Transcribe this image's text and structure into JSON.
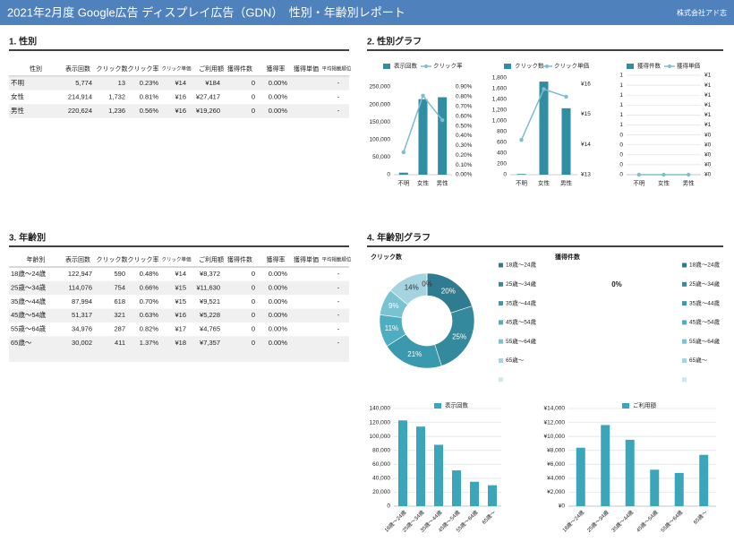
{
  "header": {
    "title": "2021年2月度 Google広告 ディスプレイ広告（GDN）　性別・年齢別レポート",
    "company": "株式会社アド志"
  },
  "gender_table": {
    "title": "1. 性別",
    "columns": [
      "性別",
      "表示回数",
      "クリック数",
      "クリック率",
      "クリック単価",
      "ご利用額",
      "獲得件数",
      "獲得率",
      "獲得単価",
      "平均掲載順位"
    ],
    "rows": [
      [
        "不明",
        "5,774",
        "13",
        "0.23%",
        "¥14",
        "¥184",
        "0",
        "0.00%",
        null,
        "-"
      ],
      [
        "女性",
        "214,914",
        "1,732",
        "0.81%",
        "¥16",
        "¥27,417",
        "0",
        "0.00%",
        null,
        "-"
      ],
      [
        "男性",
        "220,624",
        "1,236",
        "0.56%",
        "¥16",
        "¥19,260",
        "0",
        "0.00%",
        null,
        "-"
      ]
    ]
  },
  "gender_charts": {
    "title": "2. 性別グラフ"
  },
  "age_table": {
    "title": "3. 年齢別",
    "columns": [
      "年齢別",
      "表示回数",
      "クリック数",
      "クリック率",
      "クリック単価",
      "ご利用額",
      "獲得件数",
      "獲得率",
      "獲得単価",
      "平均掲載順位"
    ],
    "rows": [
      [
        "18歳〜24歳",
        "122,947",
        "590",
        "0.48%",
        "¥14",
        "¥8,372",
        "0",
        "0.00%",
        null,
        "-"
      ],
      [
        "25歳〜34歳",
        "114,076",
        "754",
        "0.66%",
        "¥15",
        "¥11,630",
        "0",
        "0.00%",
        null,
        "-"
      ],
      [
        "35歳〜44歳",
        "87,994",
        "618",
        "0.70%",
        "¥15",
        "¥9,521",
        "0",
        "0.00%",
        null,
        "-"
      ],
      [
        "45歳〜54歳",
        "51,317",
        "321",
        "0.63%",
        "¥16",
        "¥5,228",
        "0",
        "0.00%",
        null,
        "-"
      ],
      [
        "55歳〜64歳",
        "34,976",
        "287",
        "0.82%",
        "¥17",
        "¥4,765",
        "0",
        "0.00%",
        null,
        "-"
      ],
      [
        "65歳〜",
        "30,002",
        "411",
        "1.37%",
        "¥18",
        "¥7,357",
        "0",
        "0.00%",
        null,
        "-"
      ]
    ]
  },
  "age_charts": {
    "title": "4. 年齢別グラフ"
  },
  "chart_data": [
    {
      "type": "combo",
      "categories": [
        "不明",
        "女性",
        "男性"
      ],
      "grid": false,
      "series": [
        {
          "name": "表示回数",
          "type": "bar",
          "color": "#2f8ea1",
          "values": [
            5774,
            214914,
            220624
          ]
        },
        {
          "name": "クリック率",
          "type": "line",
          "axis": "y2",
          "color": "#7dbdd0",
          "values": [
            0.23,
            0.81,
            0.56
          ]
        }
      ],
      "ylim": [
        0,
        250000
      ],
      "yticks": [
        0,
        {
          "value": 50000,
          "label": "50,000"
        },
        {
          "value": 100000,
          "label": "100,000"
        },
        {
          "value": 150000,
          "label": "150,000"
        },
        {
          "value": 200000,
          "label": "200,000"
        },
        {
          "value": 250000,
          "label": "250,000"
        }
      ],
      "y2lim": [
        0,
        0.9
      ],
      "y2ticks": [
        {
          "value": 0,
          "label": "0.00%"
        },
        {
          "value": 0.1,
          "label": "0.10%"
        },
        {
          "value": 0.2,
          "label": "0.20%"
        },
        {
          "value": 0.3,
          "label": "0.30%"
        },
        {
          "value": 0.4,
          "label": "0.40%"
        },
        {
          "value": 0.5,
          "label": "0.50%"
        },
        {
          "value": 0.6,
          "label": "0.60%"
        },
        {
          "value": 0.7,
          "label": "0.70%"
        },
        {
          "value": 0.8,
          "label": "0.80%"
        },
        {
          "value": 0.9,
          "label": "0.90%"
        }
      ]
    },
    {
      "type": "combo",
      "categories": [
        "不明",
        "女性",
        "男性"
      ],
      "grid": false,
      "series": [
        {
          "name": "クリック数",
          "type": "bar",
          "color": "#2f8ea1",
          "values": [
            13,
            1732,
            1236
          ]
        },
        {
          "name": "クリック単価",
          "type": "line",
          "axis": "y2",
          "color": "#7dbdd0",
          "values": [
            14.15,
            15.83,
            15.58
          ]
        }
      ],
      "ylim": [
        0,
        1800
      ],
      "yticks": [
        0,
        200,
        400,
        600,
        800,
        {
          "value": 1000,
          "label": "1,000"
        },
        {
          "value": 1200,
          "label": "1,200"
        },
        {
          "value": 1400,
          "label": "1,400"
        },
        {
          "value": 1600,
          "label": "1,600"
        },
        {
          "value": 1800,
          "label": "1,800"
        }
      ],
      "y2lim": [
        13,
        16.2
      ],
      "y2ticks": [
        {
          "value": 13,
          "label": "¥13"
        },
        {
          "value": 14,
          "label": "¥14"
        },
        {
          "value": 15,
          "label": "¥15"
        },
        {
          "value": 16,
          "label": "¥16"
        }
      ]
    },
    {
      "type": "combo",
      "categories": [
        "不明",
        "女性",
        "男性"
      ],
      "grid": true,
      "series": [
        {
          "name": "獲得件数",
          "type": "bar",
          "color": "#2f8ea1",
          "values": [
            0,
            0,
            0
          ]
        },
        {
          "name": "獲得単価",
          "type": "line",
          "axis": "y2",
          "color": "#7dbdd0",
          "values": [
            0,
            0,
            0
          ]
        }
      ],
      "ylim": [
        0,
        1
      ],
      "yticks": [
        0,
        {
          "value": 0.1,
          "label": "0"
        },
        {
          "value": 0.2,
          "label": "0"
        },
        {
          "value": 0.3,
          "label": "0"
        },
        {
          "value": 0.4,
          "label": "0"
        },
        {
          "value": 0.5,
          "label": "1"
        },
        {
          "value": 0.6,
          "label": "1"
        },
        {
          "value": 0.7,
          "label": "1"
        },
        {
          "value": 0.8,
          "label": "1"
        },
        {
          "value": 0.9,
          "label": "1"
        },
        1
      ],
      "y2lim": [
        0,
        1
      ],
      "y2ticks": [
        {
          "value": 0,
          "label": "¥0"
        },
        {
          "value": 0.1,
          "label": "¥0"
        },
        {
          "value": 0.2,
          "label": "¥0"
        },
        {
          "value": 0.3,
          "label": "¥0"
        },
        {
          "value": 0.4,
          "label": "¥0"
        },
        {
          "value": 0.5,
          "label": "¥1"
        },
        {
          "value": 0.6,
          "label": "¥1"
        },
        {
          "value": 0.7,
          "label": "¥1"
        },
        {
          "value": 0.8,
          "label": "¥1"
        },
        {
          "value": 0.9,
          "label": "¥1"
        },
        {
          "value": 1,
          "label": "¥1"
        }
      ]
    },
    {
      "type": "donut",
      "title": "クリック数",
      "categories": [
        "18歳〜24歳",
        "25歳〜34歳",
        "35歳〜44歳",
        "45歳〜54歳",
        "55歳〜64歳",
        "65歳〜",
        null
      ],
      "values": [
        20,
        25,
        21,
        11,
        9,
        14,
        0
      ],
      "value_labels": [
        "20%",
        "25%",
        "21%",
        "11%",
        "9%",
        "14%",
        "0%"
      ],
      "colors": [
        "#2f7c90",
        "#34899d",
        "#3b99ae",
        "#4eaec1",
        "#78c2d2",
        "#a5d3df",
        "#cde8ef"
      ]
    },
    {
      "type": "donut",
      "title": "獲得件数",
      "categories": [
        "18歳〜24歳",
        "25歳〜34歳",
        "35歳〜44歳",
        "45歳〜54歳",
        "55歳〜64歳",
        "65歳〜",
        null
      ],
      "values": [
        0,
        0,
        0,
        0,
        0,
        0,
        0
      ],
      "annotation": "0%",
      "colors": [
        "#2f7c90",
        "#34899d",
        "#3b99ae",
        "#4eaec1",
        "#78c2d2",
        "#a5d3df",
        "#cde8ef"
      ]
    },
    {
      "type": "bar",
      "categories": [
        "18歳〜24歳",
        "25歳〜34歳",
        "35歳〜44歳",
        "45歳〜54歳",
        "55歳〜64歳",
        "65歳〜"
      ],
      "grid": true,
      "series": [
        {
          "name": "表示回数",
          "color": "#3ba5ba",
          "values": [
            122947,
            114076,
            87994,
            51317,
            34976,
            30002
          ]
        }
      ],
      "ylim": [
        0,
        140000
      ],
      "yticks": [
        0,
        {
          "value": 20000,
          "label": "20,000"
        },
        {
          "value": 40000,
          "label": "40,000"
        },
        {
          "value": 60000,
          "label": "60,000"
        },
        {
          "value": 80000,
          "label": "80,000"
        },
        {
          "value": 100000,
          "label": "100,000"
        },
        {
          "value": 120000,
          "label": "120,000"
        },
        {
          "value": 140000,
          "label": "140,000"
        }
      ]
    },
    {
      "type": "bar",
      "categories": [
        "18歳〜24歳",
        "25歳〜34歳",
        "35歳〜44歳",
        "45歳〜54歳",
        "55歳〜64歳",
        "65歳〜"
      ],
      "grid": true,
      "series": [
        {
          "name": "ご利用額",
          "color": "#3ba5ba",
          "values": [
            8372,
            11630,
            9521,
            5228,
            4765,
            7357
          ]
        }
      ],
      "ylim": [
        0,
        14000
      ],
      "yticks": [
        {
          "value": 0,
          "label": "¥0"
        },
        {
          "value": 2000,
          "label": "¥2,000"
        },
        {
          "value": 4000,
          "label": "¥4,000"
        },
        {
          "value": 6000,
          "label": "¥6,000"
        },
        {
          "value": 8000,
          "label": "¥8,000"
        },
        {
          "value": 10000,
          "label": "¥10,000"
        },
        {
          "value": 12000,
          "label": "¥12,000"
        },
        {
          "value": 14000,
          "label": "¥14,000"
        }
      ]
    }
  ]
}
